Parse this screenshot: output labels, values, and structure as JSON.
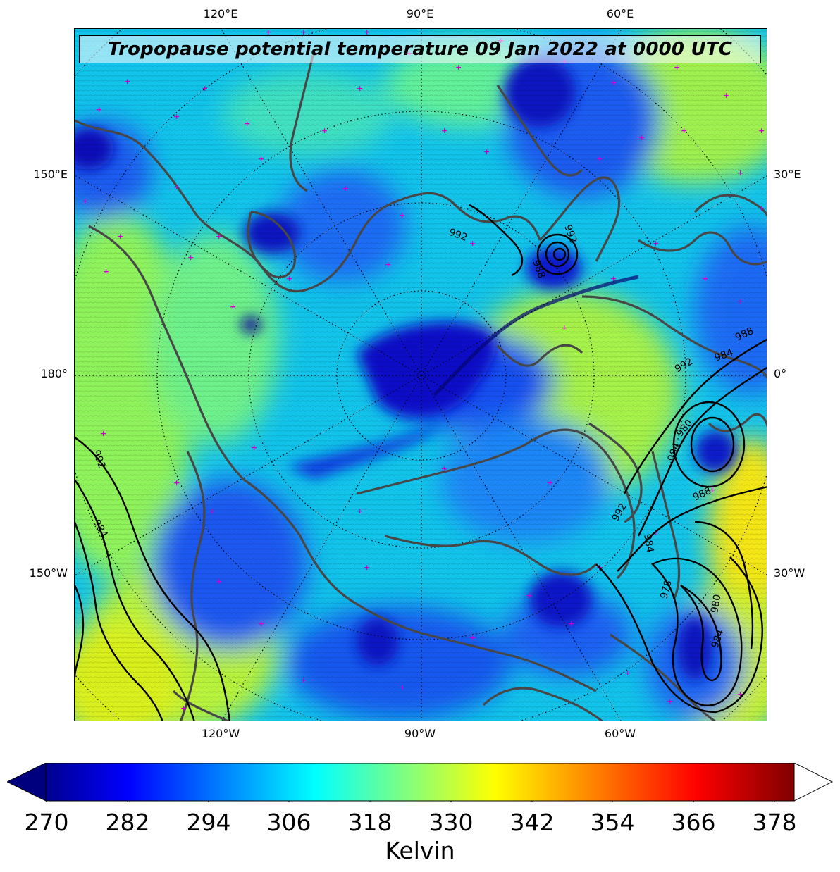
{
  "title": "Tropopause potential temperature 09 Jan 2022 at 0000 UTC",
  "longitude_labels": {
    "top": [
      "120°E",
      "90°E",
      "60°E"
    ],
    "bottom": [
      "120°W",
      "90°W",
      "60°W"
    ],
    "left": [
      "150°E",
      "180°",
      "150°W"
    ],
    "right": [
      "30°E",
      "0°",
      "30°W"
    ]
  },
  "pressure_contour_labels": [
    "992",
    "988",
    "992",
    "984",
    "988",
    "980",
    "984",
    "992",
    "988",
    "984",
    "978",
    "980",
    "984",
    "992",
    "984"
  ],
  "colorbar": {
    "label": "Kelvin",
    "ticks": [
      "270",
      "282",
      "294",
      "306",
      "318",
      "330",
      "342",
      "354",
      "366",
      "378"
    ],
    "min": 270,
    "max": 381,
    "colormap": "jet",
    "extend": "both"
  },
  "colors": {
    "coastline": "#444444",
    "station_marker": "#cc00cc",
    "contour": "#000000"
  },
  "map": {
    "projection": "north-polar-stereographic",
    "graticule": "dotted",
    "field": "tropopause potential temperature",
    "overlay": "sea-level pressure contours (hPa)"
  }
}
